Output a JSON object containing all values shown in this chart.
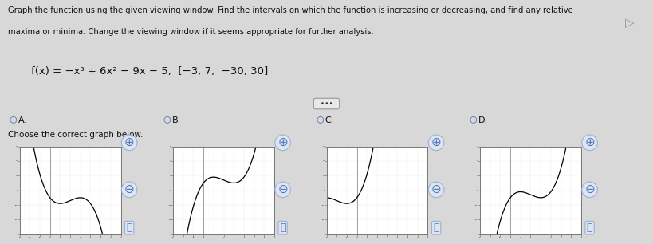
{
  "title_line1": "Graph the function using the given viewing window. Find the intervals on which the function is increasing or decreasing, and find any relative",
  "title_line2": "maxima or minima. Change the viewing window if it seems appropriate for further analysis.",
  "function_label": "f(x) = -x³ + 6x² − 9x − 5, [−3, 7, −30, 30]",
  "choose_text": "Choose the correct graph below.",
  "options": [
    "A.",
    "B.",
    "C.",
    "D."
  ],
  "xmin": -3,
  "xmax": 7,
  "ymin": -30,
  "ymax": 30,
  "bg_color": "#d8d8d8",
  "upper_bg": "#d0d0d0",
  "lower_bg": "#d0d0d0",
  "plot_bg": "#ffffff",
  "curve_color": "#000000",
  "axis_color": "#888888",
  "text_color": "#111111",
  "sep_color": "#aaaaaa"
}
